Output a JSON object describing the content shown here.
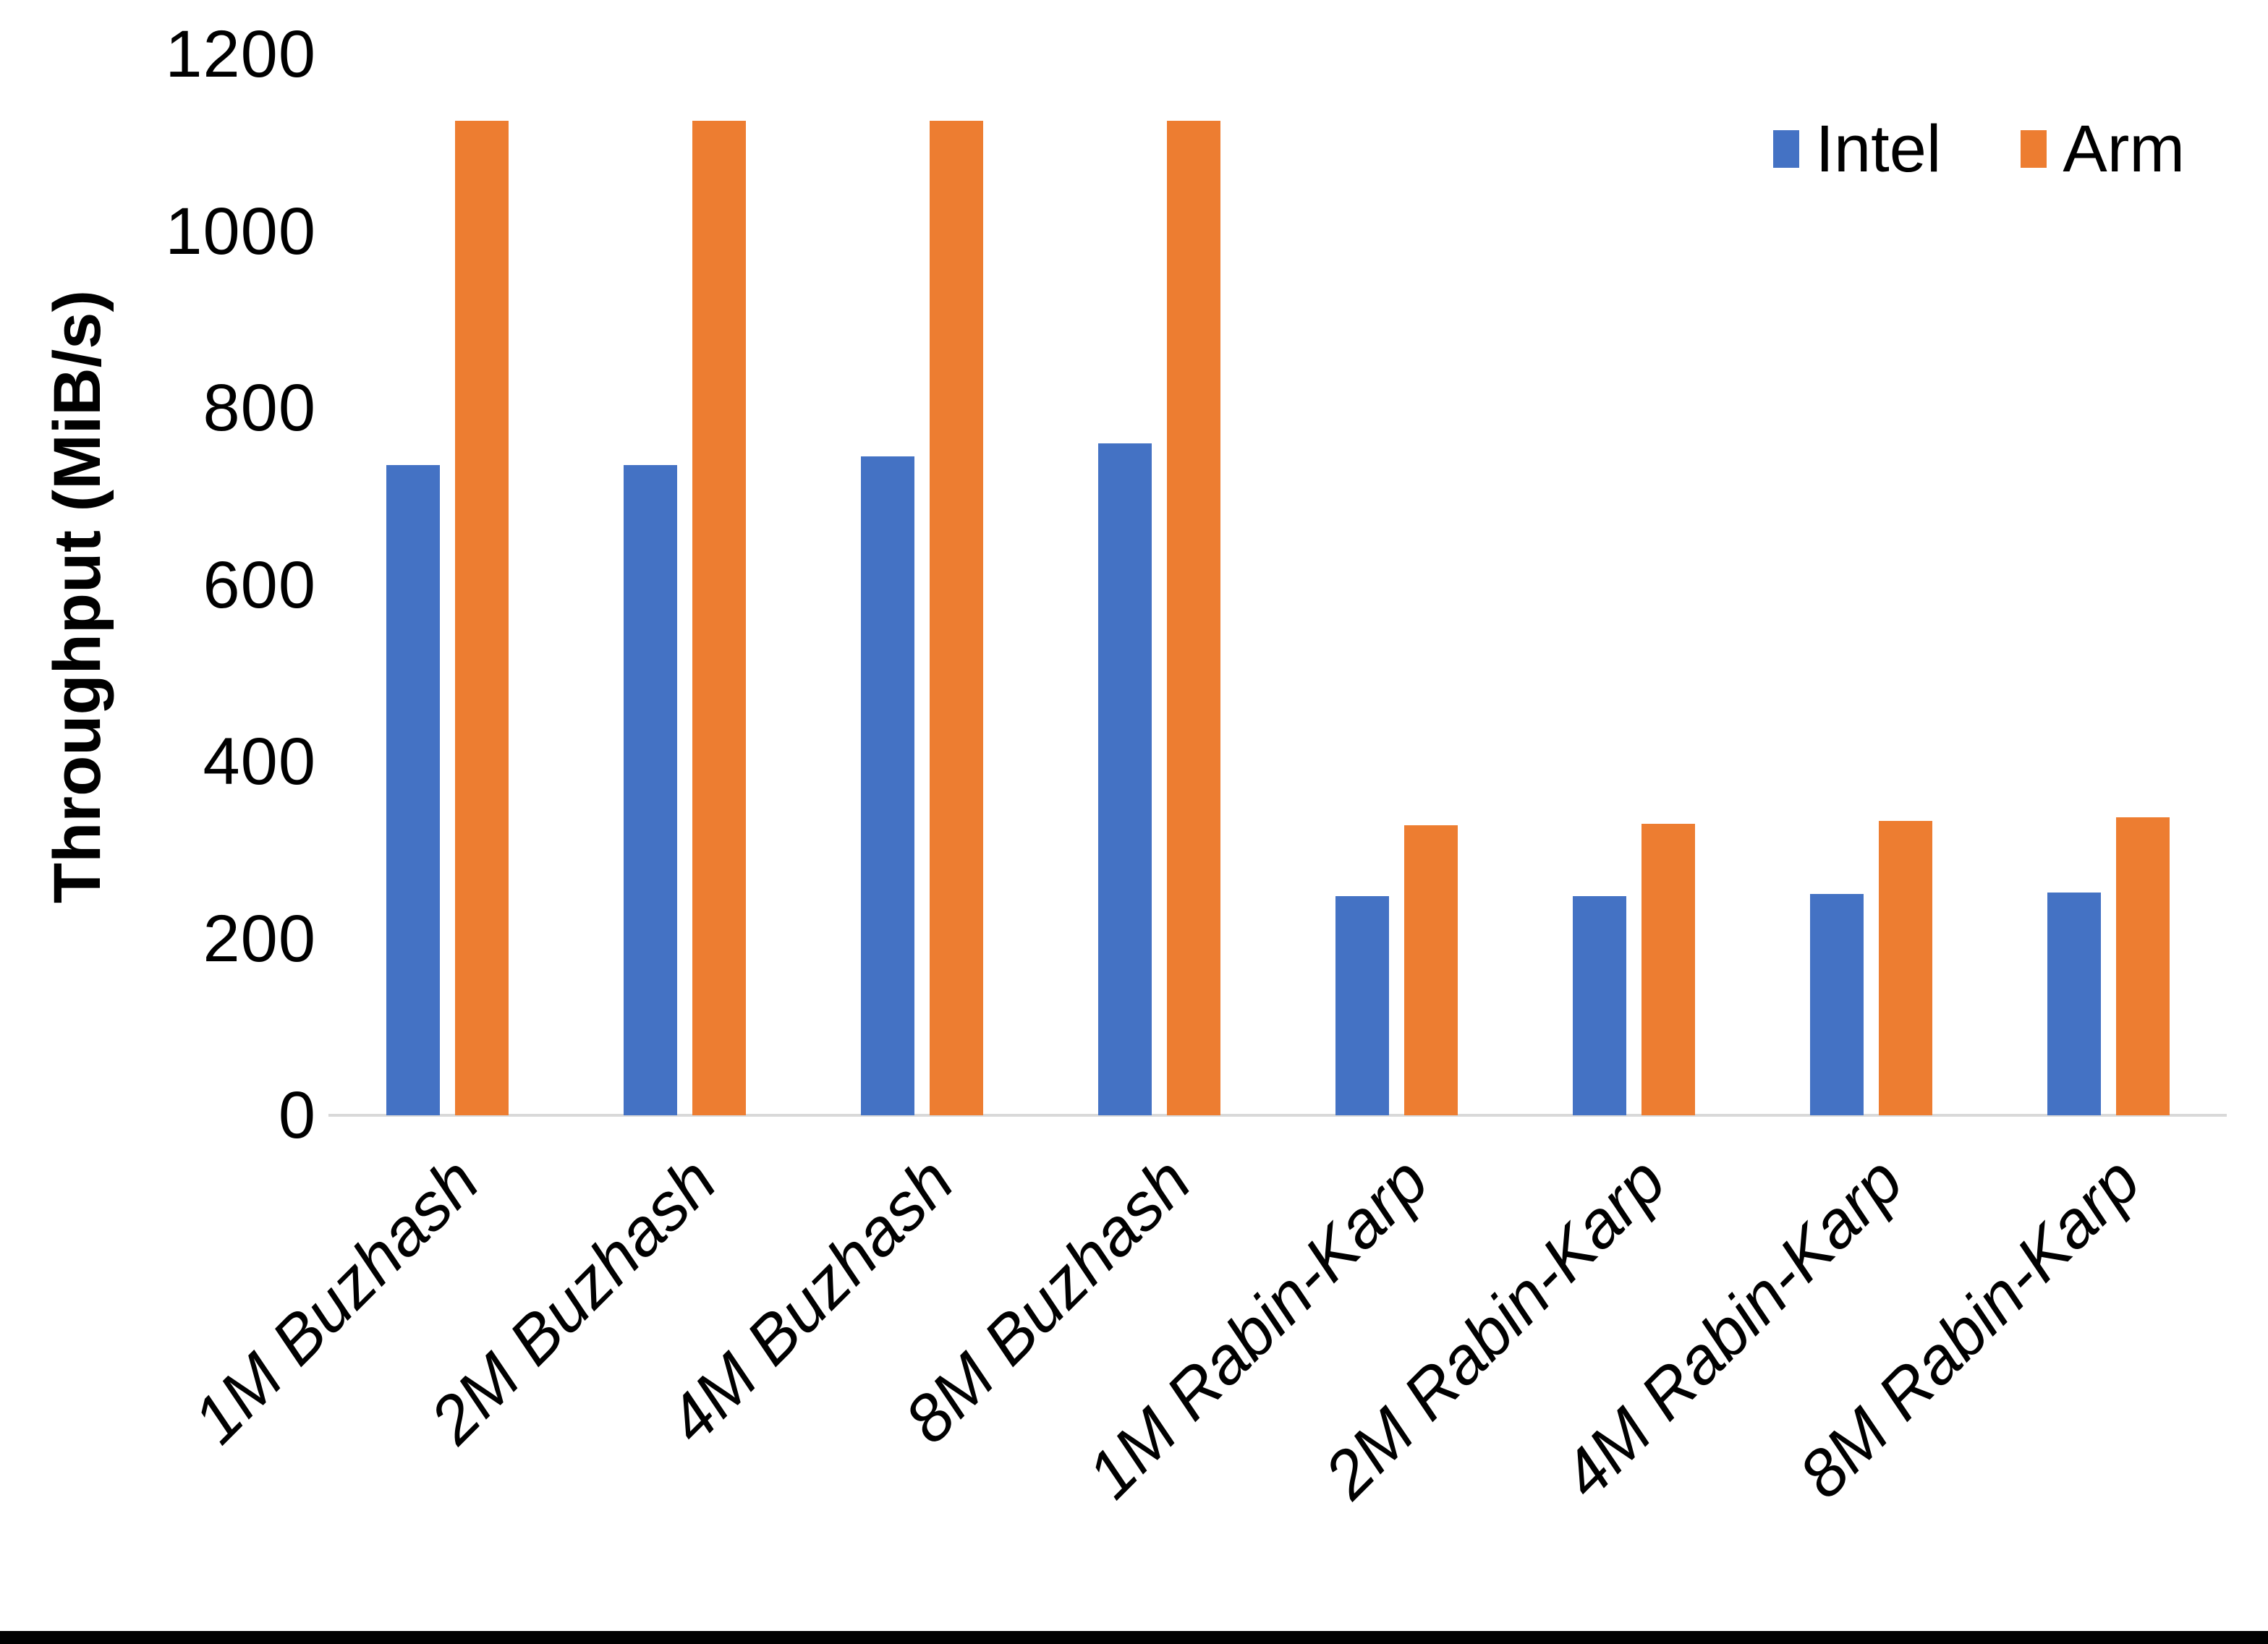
{
  "chart_data": {
    "type": "bar",
    "categories": [
      "1M Buzhash",
      "2M Buzhash",
      "4M Buzhash",
      "8M Buzhash",
      "1M Rabin-Karp",
      "2M Rabin-Karp",
      "4M Rabin-Karp",
      "8M Rabin-Karp"
    ],
    "series": [
      {
        "name": "Intel",
        "color": "#4472C4",
        "values": [
          735,
          735,
          745,
          760,
          248,
          248,
          250,
          252
        ]
      },
      {
        "name": "Arm",
        "color": "#ED7D31",
        "values": [
          1125,
          1125,
          1125,
          1125,
          328,
          330,
          333,
          337
        ]
      }
    ],
    "title": "",
    "xlabel": "",
    "ylabel": "Throughput (MiB/s)",
    "ylim": [
      0,
      1200
    ],
    "yticks": [
      0,
      200,
      400,
      600,
      800,
      1000,
      1200
    ],
    "grid": false,
    "legend_position": "top-right",
    "axis_line_color": "#D9D9D9",
    "text_color": "#000000",
    "background_color": "#FFFFFF"
  }
}
